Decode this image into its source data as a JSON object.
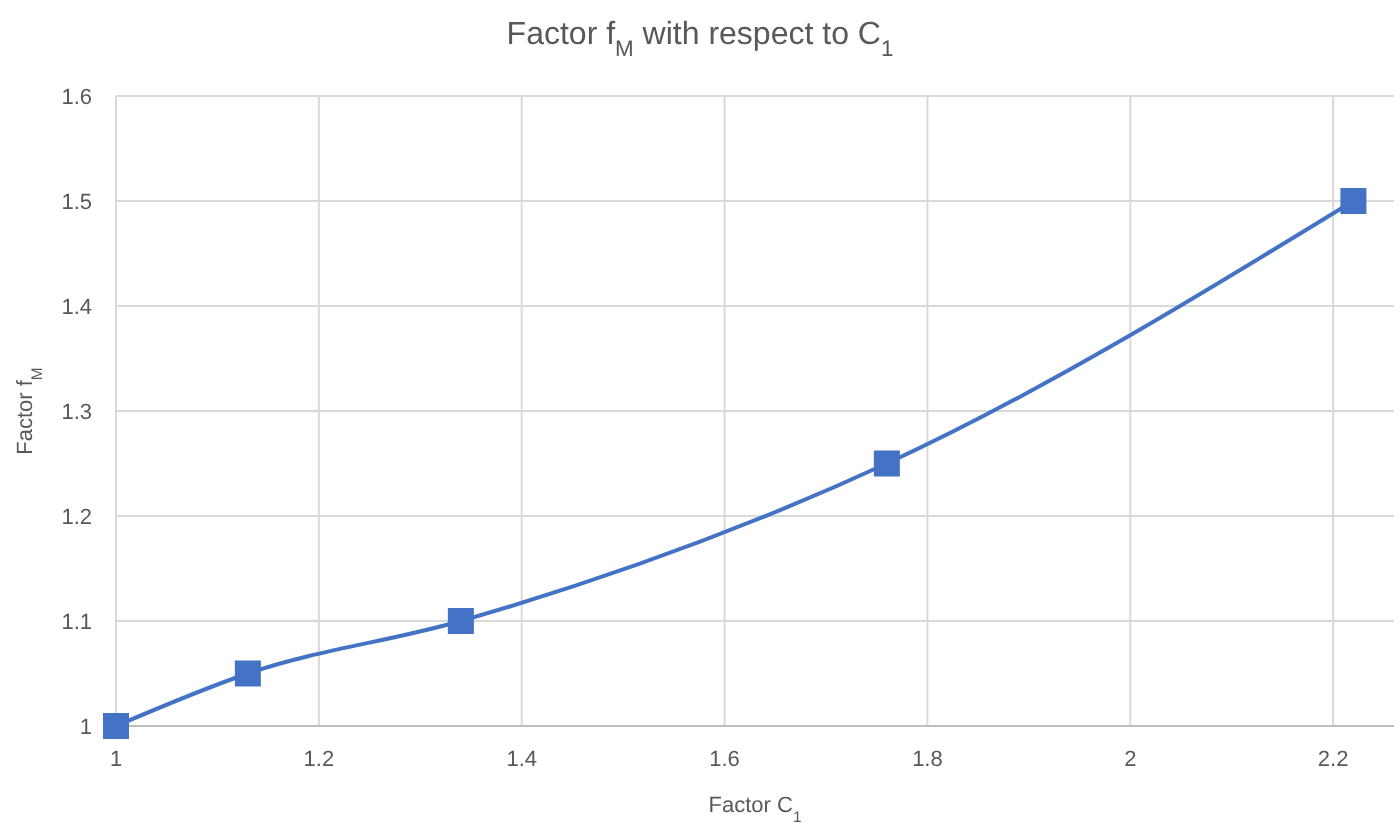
{
  "chart_data": {
    "type": "line",
    "title": "Factor f$_{M}$ with respect to C$_{1}$",
    "xlabel": "Factor C$_{1}$",
    "ylabel": "Factor f$_{M}$",
    "x": [
      1,
      1.13,
      1.34,
      1.76,
      2.22
    ],
    "series": [
      {
        "color": "#4472c4",
        "values": [
          1,
          1.05,
          1.1,
          1.25,
          1.5
        ]
      }
    ],
    "xlim": [
      1,
      2.26
    ],
    "xticks": [
      1,
      1.2,
      1.4,
      1.6,
      1.8,
      2,
      2.2
    ],
    "ylim": [
      1,
      1.6
    ],
    "yticks": [
      1,
      1.1,
      1.2,
      1.3,
      1.4,
      1.5,
      1.6
    ],
    "grid": true,
    "marker": "square",
    "line_style": "solid"
  }
}
